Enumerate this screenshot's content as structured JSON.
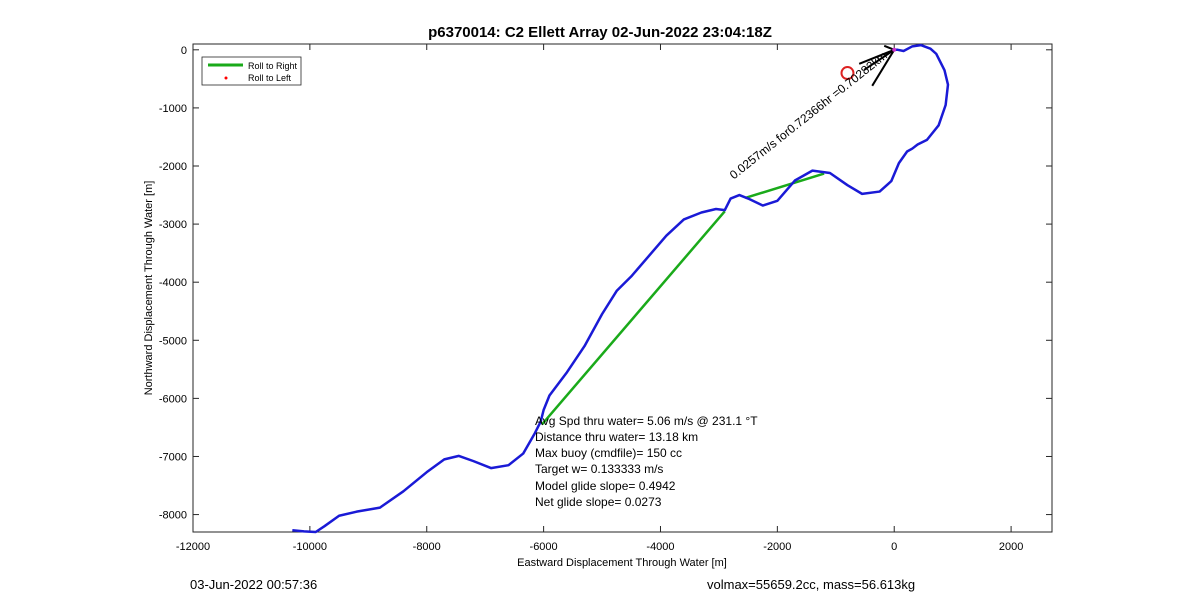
{
  "chart_data": {
    "type": "line",
    "title": "p6370014: C2 Ellett Array 02-Jun-2022 23:04:18Z",
    "xlabel": "Eastward Displacement Through Water [m]",
    "ylabel": "Northward Displacement Through Water [m]",
    "xlim": [
      -12000,
      2700
    ],
    "ylim": [
      -8300,
      100
    ],
    "xticks": [
      -12000,
      -10000,
      -8000,
      -6000,
      -4000,
      -2000,
      0,
      2000
    ],
    "yticks": [
      0,
      -1000,
      -2000,
      -3000,
      -4000,
      -5000,
      -6000,
      -7000,
      -8000
    ],
    "grid": false,
    "legend_position": "top-left",
    "legend": [
      "Roll to Right",
      "Roll to Left"
    ],
    "colors": {
      "track": "#1a1ad6",
      "roll_right": "#1aaa1a",
      "roll_left": "#ff0000",
      "marker": "#dd2222",
      "arrow": "#000000"
    },
    "series": [
      {
        "name": "Roll to Right",
        "segments": [
          [
            [
              -2900,
              -2780
            ],
            [
              -6030,
              -6450
            ]
          ],
          [
            [
              -2550,
              -2550
            ],
            [
              -1200,
              -2130
            ]
          ]
        ]
      },
      {
        "name": "track",
        "x": [
          -10300,
          -10100,
          -9900,
          -9750,
          -9500,
          -9200,
          -8800,
          -8400,
          -8000,
          -7700,
          -7450,
          -7200,
          -6900,
          -6600,
          -6350,
          -6150,
          -6050,
          -6000,
          -5900,
          -5600,
          -5300,
          -5000,
          -4750,
          -4500,
          -4200,
          -3900,
          -3600,
          -3300,
          -3050,
          -2900,
          -2800,
          -2650,
          -2500,
          -2250,
          -2000,
          -1700,
          -1400,
          -1100,
          -800,
          -550,
          -250,
          -50,
          80,
          220,
          310,
          400,
          560,
          760,
          880,
          920,
          860,
          720,
          620,
          460,
          310,
          160,
          60,
          0
        ],
        "y": [
          -8270,
          -8290,
          -8300,
          -8200,
          -8020,
          -7950,
          -7880,
          -7600,
          -7270,
          -7050,
          -6990,
          -7080,
          -7200,
          -7150,
          -6950,
          -6600,
          -6400,
          -6200,
          -5950,
          -5550,
          -5100,
          -4550,
          -4150,
          -3900,
          -3550,
          -3200,
          -2920,
          -2800,
          -2740,
          -2760,
          -2560,
          -2500,
          -2560,
          -2680,
          -2600,
          -2250,
          -2080,
          -2120,
          -2330,
          -2480,
          -2440,
          -2260,
          -1950,
          -1750,
          -1700,
          -1630,
          -1550,
          -1300,
          -950,
          -600,
          -350,
          -70,
          20,
          80,
          60,
          -20,
          0,
          0
        ]
      }
    ],
    "start_marker": {
      "x": -800,
      "y": -400
    },
    "annotations": [
      "Avg Spd thru water=  5.06 m/s @ 231.1 °T",
      "Distance thru water= 13.18 km",
      "Max buoy (cmdfile)= 150 cc",
      "Target w= 0.133333 m/s",
      "Model glide slope= 0.4942",
      "Net glide slope= 0.0273"
    ],
    "current_label": "0.0257m/s for0.72366hr =0.70282km"
  },
  "footer": {
    "left": "03-Jun-2022 00:57:36",
    "right": "volmax=55659.2cc, mass=56.613kg"
  }
}
